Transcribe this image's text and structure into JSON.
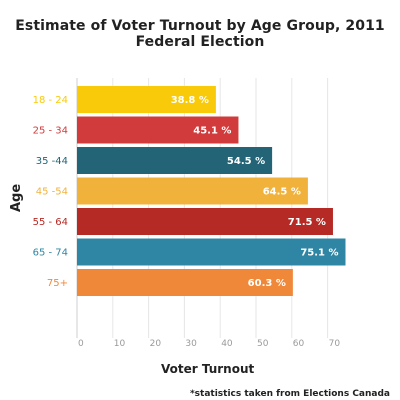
{
  "chart_data": {
    "type": "bar",
    "orientation": "horizontal",
    "title": "Estimate of Voter Turnout by Age Group, 2011 Federal Election",
    "xlabel": "Voter Turnout",
    "ylabel": "Age",
    "note": "*statistics taken from Elections Canada",
    "xlim": [
      0,
      75
    ],
    "xticks": [
      "0",
      "10",
      "20",
      "30",
      "40",
      "50",
      "60",
      "70"
    ],
    "grid": true,
    "categories": [
      "18 - 24",
      "25 - 34",
      "35 -44",
      "45 -54",
      "55 - 64",
      "65 - 74",
      "75+"
    ],
    "values": [
      38.8,
      45.1,
      54.5,
      64.5,
      71.5,
      75.1,
      60.3
    ],
    "value_labels": [
      "38.8 %",
      "45.1 %",
      "54.5 %",
      "64.5 %",
      "71.5 %",
      "75.1 %",
      "60.3 %"
    ],
    "colors": [
      "#F9CA0A",
      "#D23B3B",
      "#236477",
      "#F1B23B",
      "#B52A24",
      "#2F86A4",
      "#F0883A"
    ]
  }
}
